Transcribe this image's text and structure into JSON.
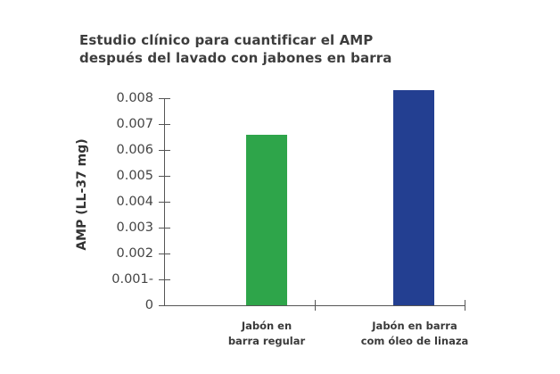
{
  "chart_data": {
    "type": "bar",
    "title": "Estudio clínico para cuantificar el AMP después del lavado con jabones en barra",
    "title_lines": [
      "Estudio clínico para cuantificar el AMP",
      "después del lavado con jabones en barra"
    ],
    "xlabel": "",
    "ylabel": "AMP (LL-37 mg)",
    "categories": [
      "Jabón en barra regular",
      "Jabón en barra com óleo de linaza"
    ],
    "category_lines": [
      [
        "Jabón en",
        "barra regular"
      ],
      [
        "Jabón en barra",
        "com óleo de linaza"
      ]
    ],
    "values": [
      0.0066,
      0.0083
    ],
    "colors": [
      "#2ea54a",
      "#233f91"
    ],
    "ylim": [
      0,
      0.008
    ],
    "yticks": [
      "0",
      "0.001-",
      "0.002",
      "0.003",
      "0.004",
      "0.005",
      "0.006",
      "0.007",
      "0.008"
    ],
    "grid": false,
    "legend": null
  }
}
